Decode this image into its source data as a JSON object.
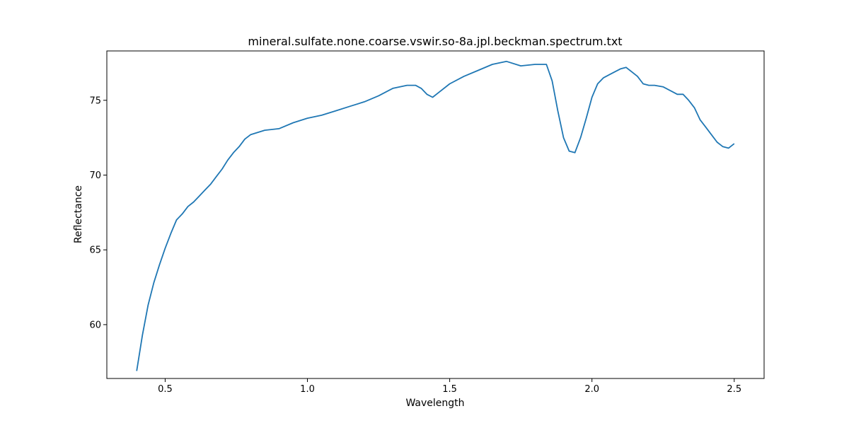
{
  "chart_data": {
    "type": "line",
    "title": "mineral.sulfate.none.coarse.vswir.so-8a.jpl.beckman.spectrum.txt",
    "xlabel": "Wavelength",
    "ylabel": "Reflectance",
    "xlim": [
      0.295,
      2.605
    ],
    "ylim": [
      56.4,
      78.3
    ],
    "xticks": [
      0.5,
      1.0,
      1.5,
      2.0,
      2.5
    ],
    "xtick_labels": [
      "0.5",
      "1.0",
      "1.5",
      "2.0",
      "2.5"
    ],
    "yticks": [
      60,
      65,
      70,
      75
    ],
    "ytick_labels": [
      "60",
      "65",
      "70",
      "75"
    ],
    "grid": false,
    "series": [
      {
        "color": "#1f77b4",
        "x": [
          0.4,
          0.42,
          0.44,
          0.46,
          0.48,
          0.5,
          0.52,
          0.54,
          0.56,
          0.58,
          0.6,
          0.62,
          0.64,
          0.66,
          0.68,
          0.7,
          0.72,
          0.74,
          0.76,
          0.78,
          0.8,
          0.85,
          0.9,
          0.95,
          1.0,
          1.05,
          1.1,
          1.15,
          1.2,
          1.25,
          1.3,
          1.35,
          1.38,
          1.4,
          1.42,
          1.44,
          1.46,
          1.5,
          1.55,
          1.6,
          1.65,
          1.7,
          1.75,
          1.8,
          1.84,
          1.86,
          1.88,
          1.9,
          1.92,
          1.94,
          1.96,
          1.98,
          2.0,
          2.02,
          2.04,
          2.06,
          2.08,
          2.1,
          2.12,
          2.14,
          2.16,
          2.18,
          2.2,
          2.22,
          2.25,
          2.28,
          2.3,
          2.32,
          2.34,
          2.36,
          2.38,
          2.4,
          2.42,
          2.44,
          2.46,
          2.48,
          2.5
        ],
        "y": [
          56.9,
          59.3,
          61.3,
          62.8,
          64.0,
          65.1,
          66.1,
          67.0,
          67.4,
          67.9,
          68.2,
          68.6,
          69.0,
          69.4,
          69.9,
          70.4,
          71.0,
          71.5,
          71.9,
          72.4,
          72.7,
          73.0,
          73.1,
          73.5,
          73.8,
          74.0,
          74.3,
          74.6,
          74.9,
          75.3,
          75.8,
          76.0,
          76.0,
          75.8,
          75.4,
          75.2,
          75.5,
          76.1,
          76.6,
          77.0,
          77.4,
          77.6,
          77.3,
          77.4,
          77.4,
          76.3,
          74.3,
          72.5,
          71.6,
          71.5,
          72.5,
          73.8,
          75.2,
          76.1,
          76.5,
          76.7,
          76.9,
          77.1,
          77.2,
          76.9,
          76.6,
          76.1,
          76.0,
          76.0,
          75.9,
          75.6,
          75.4,
          75.4,
          75.0,
          74.5,
          73.7,
          73.2,
          72.7,
          72.2,
          71.9,
          71.8,
          72.1
        ]
      }
    ]
  }
}
